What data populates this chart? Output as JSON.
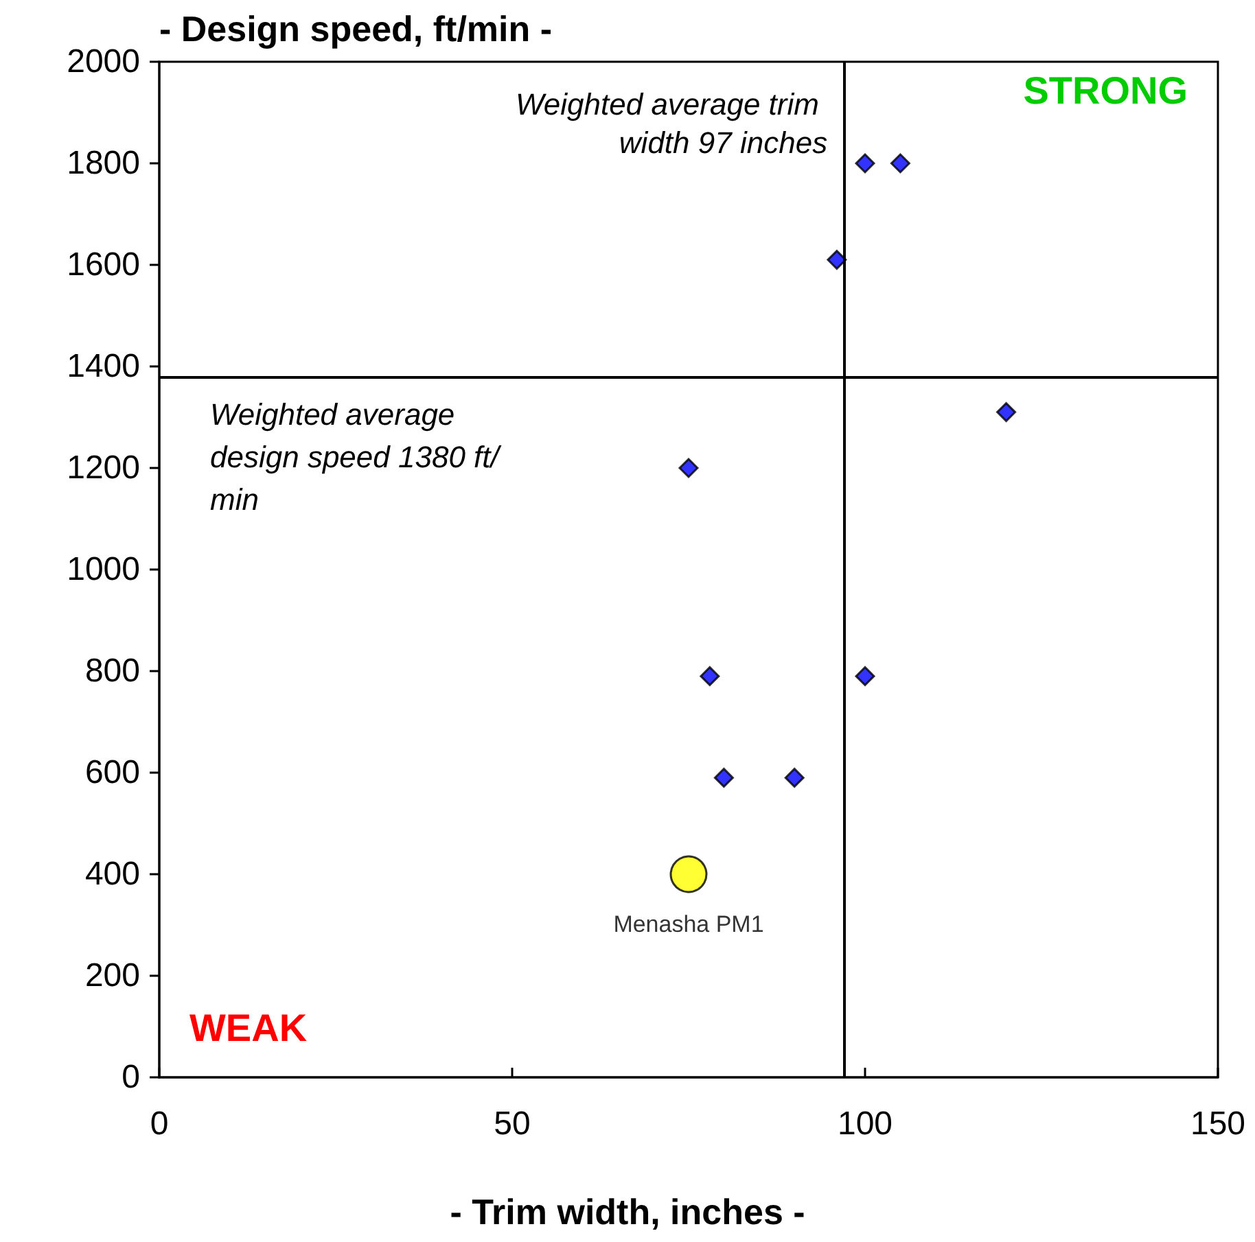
{
  "chart_data": {
    "type": "scatter",
    "xlabel": "- Trim width, inches -",
    "ylabel": "- Design speed, ft/min -",
    "xlim": [
      0,
      150
    ],
    "xticks": [
      0,
      50,
      100,
      150
    ],
    "ylim": [
      0,
      2000
    ],
    "yticks": [
      0,
      200,
      400,
      600,
      800,
      1000,
      1200,
      1400,
      1600,
      1800,
      2000
    ],
    "grid": false,
    "legend": false,
    "series": [
      {
        "color": "#0000ff",
        "marker": "diamond",
        "x": [
          100,
          105,
          96,
          120,
          75,
          78,
          100,
          80,
          90
        ],
        "values": [
          1800,
          1800,
          1610,
          1310,
          1200,
          790,
          790,
          590,
          590
        ]
      },
      {
        "name": "Menasha PM1",
        "color": "#ffff00",
        "marker": "circle",
        "x": [
          75
        ],
        "values": [
          400
        ]
      }
    ],
    "ref_lines": [
      {
        "axis": "x",
        "value": 97,
        "label": "Weighted average trim width 97 inches"
      },
      {
        "axis": "y",
        "value": 1380,
        "label": "Weighted average design speed 1380 ft/min"
      }
    ],
    "annotations": [
      "STRONG",
      "WEAK"
    ]
  }
}
